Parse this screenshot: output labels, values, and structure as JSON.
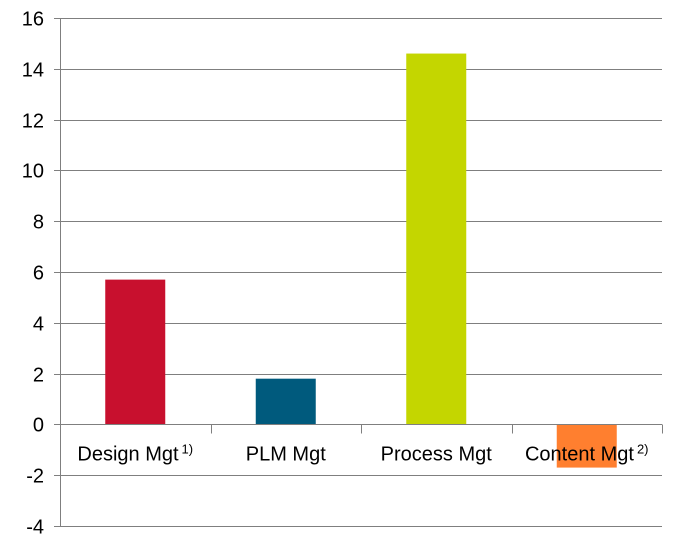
{
  "chart_data": {
    "type": "bar",
    "categories": [
      "Design Mgt",
      "PLM Mgt",
      "Process Mgt",
      "Content Mgt"
    ],
    "category_superscripts": [
      "1)",
      "",
      "",
      "2)"
    ],
    "values": [
      5.7,
      1.8,
      14.6,
      -1.7
    ],
    "colors": [
      "#c8102e",
      "#005a7d",
      "#c4d600",
      "#ff7f2f"
    ],
    "ylim": [
      -4,
      16
    ],
    "yticks": [
      "16",
      "14",
      "12",
      "10",
      "8",
      "6",
      "4",
      "2",
      "0",
      "-2",
      "-4"
    ],
    "grid": true,
    "title": "",
    "xlabel": "",
    "ylabel": ""
  }
}
